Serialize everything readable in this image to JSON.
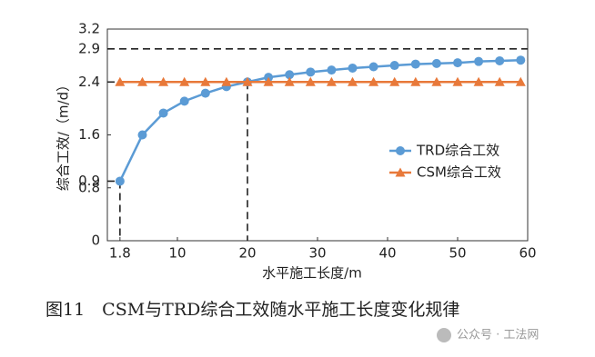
{
  "chart_data": {
    "type": "line",
    "y_label": "综合工效/（m/d）",
    "x_label": "水平施工长度/m",
    "caption": "图11　CSM与TRD综合工效随水平施工长度变化规律",
    "watermark": "公众号 · 工法网",
    "x": [
      1.8,
      5,
      8,
      11,
      14,
      17,
      20,
      23,
      26,
      29,
      32,
      35,
      38,
      41,
      44,
      47,
      50,
      53,
      56,
      59
    ],
    "series": [
      {
        "name": "TRD综合工效",
        "color": "#5b9bd5",
        "marker": "circle",
        "values": [
          0.9,
          1.6,
          1.93,
          2.11,
          2.23,
          2.33,
          2.4,
          2.47,
          2.51,
          2.55,
          2.58,
          2.61,
          2.63,
          2.65,
          2.67,
          2.68,
          2.69,
          2.71,
          2.72,
          2.73
        ]
      },
      {
        "name": "CSM综合工效",
        "color": "#e8793a",
        "marker": "triangle",
        "values": [
          2.4,
          2.4,
          2.4,
          2.4,
          2.4,
          2.4,
          2.4,
          2.4,
          2.4,
          2.4,
          2.4,
          2.4,
          2.4,
          2.4,
          2.4,
          2.4,
          2.4,
          2.4,
          2.4,
          2.4
        ]
      }
    ],
    "xlim": [
      0,
      60
    ],
    "xticks": [
      1.8,
      10,
      20,
      30,
      40,
      50,
      60
    ],
    "ylim": [
      0,
      3.2
    ],
    "yticks": [
      0,
      0.8,
      0.9,
      1.6,
      2.4,
      2.9,
      3.2
    ],
    "hline": 2.9,
    "guides": [
      {
        "x": 1.8,
        "y": 0.9
      },
      {
        "x": 20,
        "y": 2.4
      }
    ],
    "legend": "right"
  }
}
